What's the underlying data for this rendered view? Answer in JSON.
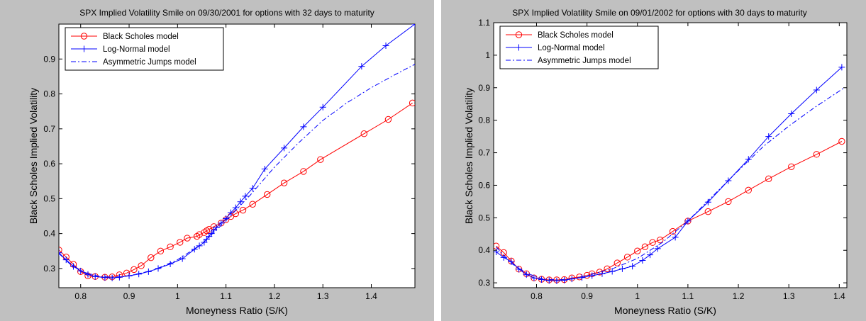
{
  "chart_data": [
    {
      "type": "line",
      "title": "SPX Implied Volatility Smile on 09/30/2001 for options with 32 days to maturity",
      "xlabel": "Moneyness Ratio (S/K)",
      "ylabel": "Black Scholes Implied Volatility",
      "xlim": [
        0.755,
        1.49
      ],
      "ylim": [
        0.245,
        1.0
      ],
      "xticks": [
        0.8,
        0.9,
        1,
        1.1,
        1.2,
        1.3,
        1.4
      ],
      "xtick_labels": [
        "0.8",
        "0.9",
        "1",
        "1.1",
        "1.2",
        "1.3",
        "1.4"
      ],
      "yticks": [
        0.3,
        0.4,
        0.5,
        0.6,
        0.7,
        0.8,
        0.9
      ],
      "ytick_labels": [
        "0.3",
        "0.4",
        "0.5",
        "0.6",
        "0.7",
        "0.8",
        "0.9"
      ],
      "grid": false,
      "legend_position": "top-left",
      "series": [
        {
          "name": "Black Scholes model",
          "color": "#ff0000",
          "marker": "circle",
          "dash": "solid",
          "x": [
            0.755,
            0.77,
            0.785,
            0.8,
            0.815,
            0.83,
            0.85,
            0.865,
            0.88,
            0.895,
            0.91,
            0.925,
            0.945,
            0.965,
            0.985,
            1.005,
            1.02,
            1.04,
            1.045,
            1.055,
            1.06,
            1.065,
            1.075,
            1.09,
            1.1,
            1.11,
            1.12,
            1.135,
            1.155,
            1.185,
            1.22,
            1.26,
            1.295,
            1.385,
            1.435,
            1.485
          ],
          "y": [
            0.353,
            0.333,
            0.312,
            0.291,
            0.279,
            0.277,
            0.275,
            0.276,
            0.282,
            0.287,
            0.297,
            0.308,
            0.331,
            0.35,
            0.362,
            0.375,
            0.387,
            0.392,
            0.397,
            0.403,
            0.408,
            0.412,
            0.42,
            0.43,
            0.44,
            0.449,
            0.457,
            0.467,
            0.484,
            0.512,
            0.545,
            0.578,
            0.612,
            0.686,
            0.727,
            0.774
          ]
        },
        {
          "name": "Log-Normal model",
          "color": "#0000ff",
          "marker": "plus",
          "dash": "solid",
          "x": [
            0.755,
            0.77,
            0.785,
            0.8,
            0.815,
            0.83,
            0.85,
            0.865,
            0.88,
            0.9,
            0.92,
            0.94,
            0.96,
            0.985,
            1.01,
            1.035,
            1.045,
            1.055,
            1.06,
            1.065,
            1.07,
            1.075,
            1.08,
            1.09,
            1.1,
            1.11,
            1.12,
            1.13,
            1.14,
            1.155,
            1.18,
            1.22,
            1.26,
            1.3,
            1.38,
            1.43,
            1.49
          ],
          "y": [
            0.345,
            0.325,
            0.306,
            0.293,
            0.283,
            0.277,
            0.274,
            0.273,
            0.275,
            0.279,
            0.284,
            0.291,
            0.3,
            0.313,
            0.328,
            0.355,
            0.365,
            0.375,
            0.384,
            0.392,
            0.4,
            0.41,
            0.417,
            0.43,
            0.443,
            0.46,
            0.474,
            0.491,
            0.507,
            0.53,
            0.585,
            0.645,
            0.706,
            0.762,
            0.879,
            0.938,
            1.0
          ]
        },
        {
          "name": "Asymmetric Jumps model",
          "color": "#0000ff",
          "marker": "none",
          "dash": "dashdot",
          "x": [
            0.755,
            0.78,
            0.81,
            0.84,
            0.87,
            0.9,
            0.95,
            1.0,
            1.05,
            1.1,
            1.15,
            1.2,
            1.25,
            1.3,
            1.35,
            1.4,
            1.45,
            1.49
          ],
          "y": [
            0.343,
            0.31,
            0.288,
            0.277,
            0.275,
            0.279,
            0.295,
            0.325,
            0.37,
            0.437,
            0.51,
            0.59,
            0.66,
            0.724,
            0.775,
            0.818,
            0.856,
            0.885
          ]
        }
      ]
    },
    {
      "type": "line",
      "title": "SPX Implied Volatility Smile on 09/01/2002 for options with 30 days to maturity",
      "xlabel": "Moneyness Ratio (S/K)",
      "ylabel": "Black Scholes Implied Volatility",
      "xlim": [
        0.715,
        1.415
      ],
      "ylim": [
        0.285,
        1.1
      ],
      "xticks": [
        0.8,
        0.9,
        1,
        1.1,
        1.2,
        1.3,
        1.4
      ],
      "xtick_labels": [
        "0.8",
        "0.9",
        "1",
        "1.1",
        "1.2",
        "1.3",
        "1.4"
      ],
      "yticks": [
        0.3,
        0.4,
        0.5,
        0.6,
        0.7,
        0.8,
        0.9,
        1.0,
        1.1
      ],
      "ytick_labels": [
        "0.3",
        "0.4",
        "0.5",
        "0.6",
        "0.7",
        "0.8",
        "0.9",
        "1",
        "1.1"
      ],
      "grid": false,
      "legend_position": "top-left",
      "series": [
        {
          "name": "Black Scholes model",
          "color": "#ff0000",
          "marker": "circle",
          "dash": "solid",
          "x": [
            0.72,
            0.735,
            0.75,
            0.765,
            0.78,
            0.795,
            0.81,
            0.825,
            0.84,
            0.855,
            0.87,
            0.885,
            0.9,
            0.91,
            0.925,
            0.94,
            0.96,
            0.98,
            1.0,
            1.015,
            1.03,
            1.045,
            1.07,
            1.1,
            1.14,
            1.18,
            1.22,
            1.26,
            1.305,
            1.355,
            1.405
          ],
          "y": [
            0.413,
            0.393,
            0.367,
            0.342,
            0.328,
            0.315,
            0.311,
            0.309,
            0.309,
            0.31,
            0.315,
            0.318,
            0.323,
            0.328,
            0.333,
            0.343,
            0.361,
            0.379,
            0.398,
            0.411,
            0.424,
            0.432,
            0.458,
            0.49,
            0.519,
            0.55,
            0.585,
            0.62,
            0.657,
            0.695,
            0.735
          ]
        },
        {
          "name": "Log-Normal model",
          "color": "#0000ff",
          "marker": "plus",
          "dash": "solid",
          "x": [
            0.72,
            0.735,
            0.75,
            0.765,
            0.78,
            0.795,
            0.81,
            0.825,
            0.84,
            0.855,
            0.87,
            0.89,
            0.91,
            0.93,
            0.95,
            0.97,
            0.99,
            1.01,
            1.025,
            1.04,
            1.075,
            1.1,
            1.14,
            1.18,
            1.22,
            1.26,
            1.305,
            1.355,
            1.405
          ],
          "y": [
            0.395,
            0.378,
            0.365,
            0.342,
            0.325,
            0.315,
            0.31,
            0.307,
            0.306,
            0.308,
            0.312,
            0.316,
            0.322,
            0.328,
            0.335,
            0.343,
            0.351,
            0.369,
            0.386,
            0.405,
            0.44,
            0.49,
            0.548,
            0.614,
            0.68,
            0.75,
            0.82,
            0.893,
            0.963
          ]
        },
        {
          "name": "Asymmetric Jumps model",
          "color": "#0000ff",
          "marker": "none",
          "dash": "dashdot",
          "x": [
            0.72,
            0.75,
            0.78,
            0.81,
            0.84,
            0.87,
            0.9,
            0.95,
            1.0,
            1.05,
            1.1,
            1.15,
            1.2,
            1.25,
            1.3,
            1.35,
            1.41
          ],
          "y": [
            0.41,
            0.36,
            0.33,
            0.313,
            0.309,
            0.312,
            0.322,
            0.343,
            0.375,
            0.425,
            0.49,
            0.568,
            0.645,
            0.72,
            0.782,
            0.838,
            0.9
          ]
        }
      ]
    }
  ]
}
